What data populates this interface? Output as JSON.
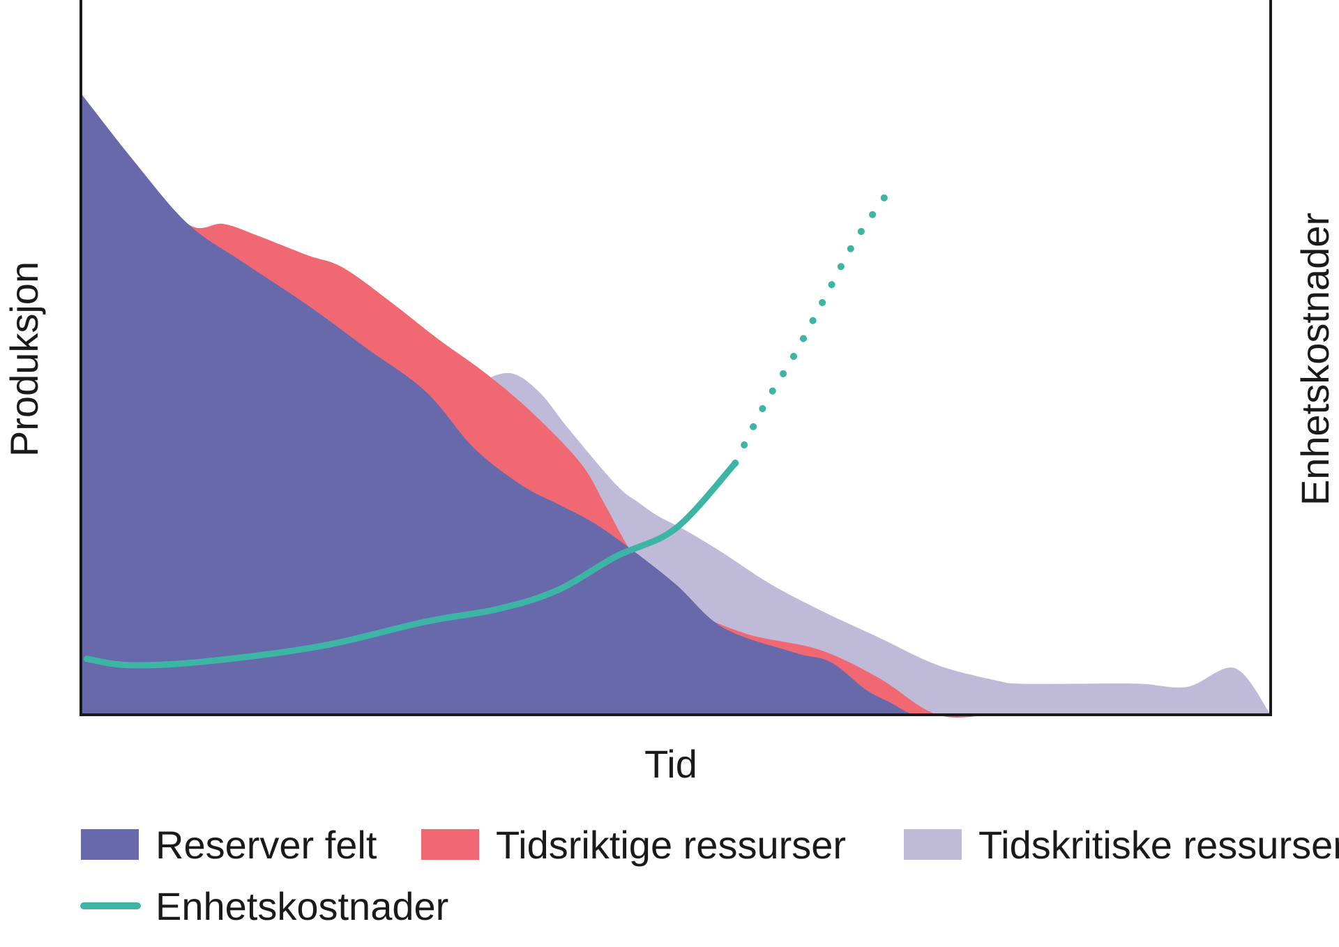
{
  "chart_data": {
    "type": "area",
    "title": "",
    "xlabel": "Tid",
    "ylabel": "Produksjon",
    "y2label": "Enhetskostnader",
    "xlim": [
      0,
      100
    ],
    "ylim": [
      0,
      100
    ],
    "y2lim": [
      0,
      100
    ],
    "grid": false,
    "legend_position": "bottom",
    "series": [
      {
        "name": "Tidskritiske ressurser",
        "kind": "area",
        "color": "#c0bad9",
        "x": [
          0,
          4.5,
          9,
          15,
          20,
          24,
          29,
          31.5,
          33,
          36,
          38.5,
          41,
          45,
          47,
          48.5,
          51,
          54,
          58,
          62.5,
          67,
          72,
          77,
          79,
          84,
          89,
          93,
          97,
          100
        ],
        "y": [
          100,
          89,
          79,
          72,
          68.5,
          64.5,
          55.5,
          51,
          53,
          55,
          52,
          46,
          37,
          34,
          32,
          29.5,
          26,
          21,
          16.5,
          12.5,
          8,
          5.5,
          5,
          5,
          5,
          4.5,
          7.5,
          0
        ]
      },
      {
        "name": "Tidsriktige ressurser",
        "kind": "area",
        "color": "#f06872",
        "x": [
          0,
          4.5,
          9,
          12,
          15,
          19,
          22,
          26,
          30,
          34,
          38,
          42,
          44,
          46,
          48,
          49,
          51,
          56,
          62,
          67,
          72,
          77,
          82,
          88,
          93,
          97,
          100
        ],
        "y": [
          100,
          89,
          79,
          79,
          77,
          74,
          72,
          66.5,
          60.5,
          55,
          48.5,
          40.5,
          34,
          27,
          22,
          20.5,
          17,
          13,
          10.5,
          6,
          0,
          0,
          0,
          0,
          0,
          0,
          0
        ]
      },
      {
        "name": "Reserver felt",
        "kind": "area",
        "color": "#6869aa",
        "x": [
          0,
          4.5,
          9,
          13.5,
          19,
          24,
          29,
          33,
          37,
          40,
          43,
          46,
          50,
          54,
          60,
          63,
          66,
          68,
          70,
          72,
          77,
          82,
          88,
          93,
          97,
          100
        ],
        "y": [
          100,
          89,
          79,
          73,
          66,
          59,
          52,
          43,
          37,
          34,
          31,
          27,
          21,
          14,
          10,
          8.5,
          4,
          2,
          0,
          0,
          0,
          0,
          0,
          0,
          0,
          0
        ]
      },
      {
        "name": "Enhetskostnader",
        "kind": "line",
        "axis": "right",
        "color": "#3db5a5",
        "x": [
          0.5,
          4,
          10,
          20,
          29,
          35,
          40,
          45,
          50,
          55
        ],
        "y": [
          9,
          8,
          8.5,
          11,
          15,
          17,
          20,
          25.5,
          30,
          40.5
        ]
      },
      {
        "name": "Enhetskostnader (projisert)",
        "kind": "dotted",
        "axis": "right",
        "color": "#3db5a5",
        "x": [
          55,
          57.5,
          60,
          62.5,
          65,
          67.8
        ],
        "y": [
          40.5,
          50,
          58,
          67,
          76,
          84
        ]
      }
    ],
    "legend": [
      {
        "label": "Reserver felt",
        "swatch": "area",
        "color": "#6869aa"
      },
      {
        "label": "Tidsriktige ressurser",
        "swatch": "area",
        "color": "#f06872"
      },
      {
        "label": "Tidskritiske ressurser",
        "swatch": "area",
        "color": "#c0bad9"
      },
      {
        "label": "Enhetskostnader",
        "swatch": "line",
        "color": "#3db5a5"
      }
    ]
  }
}
